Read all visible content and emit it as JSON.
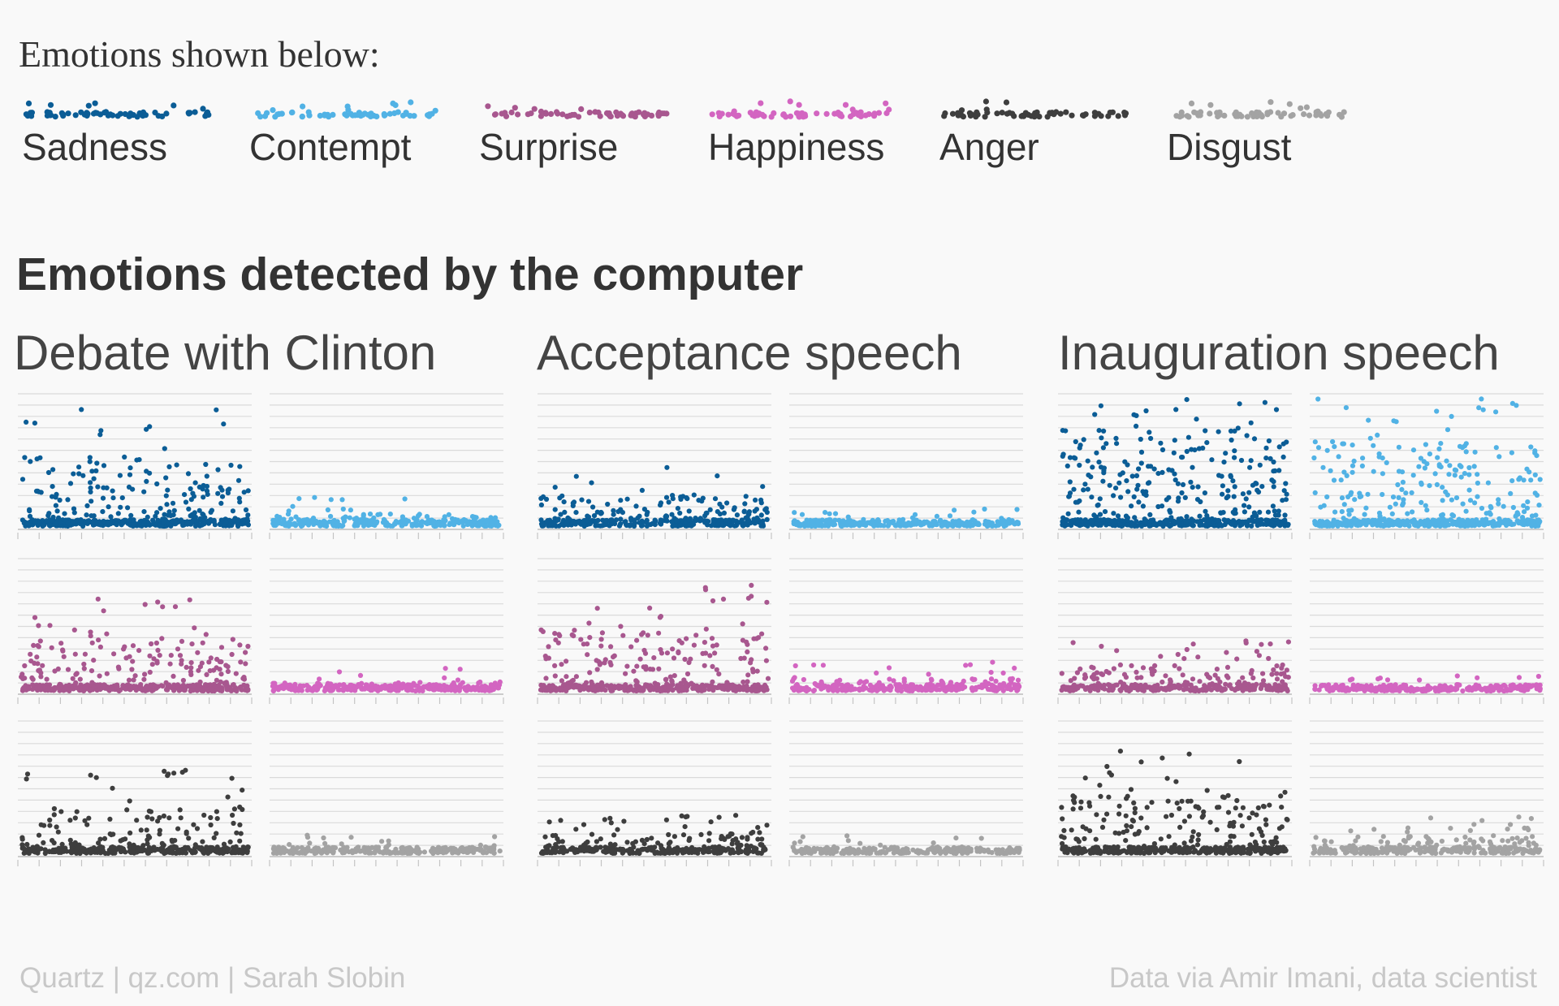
{
  "legend": {
    "title": "Emotions shown below:",
    "items": [
      {
        "label": "Sadness",
        "color": "#0b5d96"
      },
      {
        "label": "Contempt",
        "color": "#51b2e5"
      },
      {
        "label": "Surprise",
        "color": "#a8578f"
      },
      {
        "label": "Happiness",
        "color": "#d365c1"
      },
      {
        "label": "Anger",
        "color": "#3e3e3e"
      },
      {
        "label": "Disgust",
        "color": "#a3a3a3"
      }
    ]
  },
  "title": "Emotions detected by the computer",
  "footer": {
    "source": "Quartz | qz.com | Sarah Slobin",
    "credit": "Data via Amir Imani, data scientist"
  },
  "chart_data": {
    "type": "scatter",
    "grid": true,
    "emotion_layout": [
      [
        "Sadness",
        "Contempt"
      ],
      [
        "Surprise",
        "Happiness"
      ],
      [
        "Anger",
        "Disgust"
      ]
    ],
    "panels": [
      {
        "speech": "Debate with Clinton",
        "emotions": {
          "Sadness": 0.45,
          "Contempt": 0.08,
          "Surprise": 0.34,
          "Happiness": 0.06,
          "Anger": 0.3,
          "Disgust": 0.04
        }
      },
      {
        "speech": "Acceptance speech",
        "emotions": {
          "Sadness": 0.2,
          "Contempt": 0.03,
          "Surprise": 0.4,
          "Happiness": 0.08,
          "Anger": 0.13,
          "Disgust": 0.03
        }
      },
      {
        "speech": "Inauguration speech",
        "emotions": {
          "Sadness": 0.62,
          "Contempt": 0.55,
          "Surprise": 0.17,
          "Happiness": 0.02,
          "Anger": 0.38,
          "Disgust": 0.11
        }
      }
    ]
  }
}
